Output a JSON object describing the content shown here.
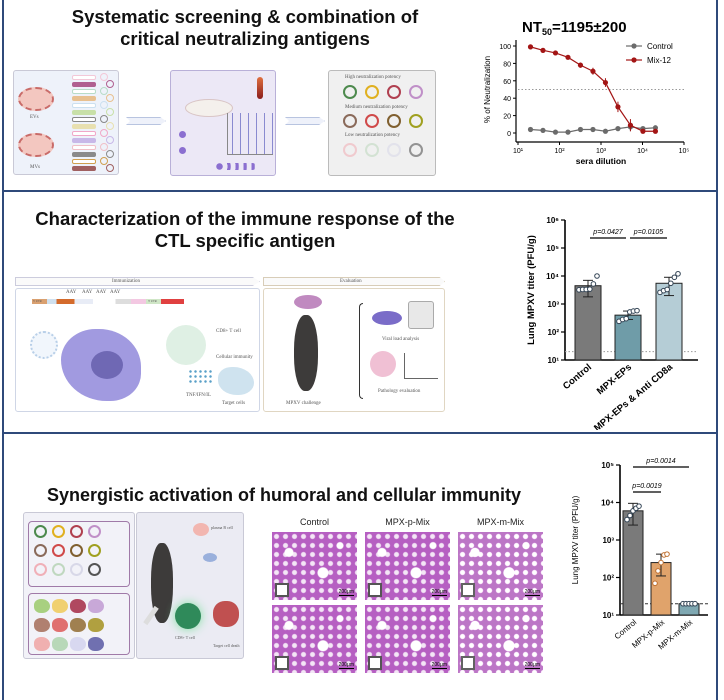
{
  "sections": [
    {
      "title_lines": [
        "Systematic screening & combination of",
        "critical neutralizing antigens"
      ]
    },
    {
      "title_lines": [
        "Characterization of the immune response of the",
        "CTL specific antigen"
      ]
    },
    {
      "title_lines": [
        "Synergistic activation of humoral and cellular immunity"
      ]
    }
  ],
  "diagram1": {
    "evs": "EVs",
    "mvs": "MVs",
    "high": "High neutralization potency",
    "medium": "Medium neutralization potency",
    "low": "Low neutralization potency"
  },
  "diagram2": {
    "immunization": "Immunization",
    "evaluation": "Evaluation",
    "aay": "AAY",
    "utr5": "5' UTR",
    "utr3": "3' UTR",
    "cd8": "CD8+ T cell",
    "cellular": "Cellular immunity",
    "cytokines": "TNF/IFN/IL",
    "target": "Target cells",
    "challenge": "MPXV challenge",
    "viral": "Viral load analysis",
    "pathology": "Pathology evaluation"
  },
  "diagram3": {
    "plasma": "plasma B cell",
    "cd8": "CD8+ T cell",
    "death": "Target cell death"
  },
  "histology": {
    "columns": [
      "Control",
      "MPX-p-Mix",
      "MPX-m-Mix"
    ],
    "scale": "200μm"
  },
  "chart_data": [
    {
      "type": "line",
      "title": "NT50=1195±200",
      "title_main": "NT",
      "title_sub": "50",
      "title_rest": "=1195±200",
      "xlabel": "sera dilution",
      "ylabel": "% of Neutralization",
      "xscale": "log",
      "xlim": [
        10,
        100000
      ],
      "ylim": [
        0,
        100
      ],
      "xticks": [
        "10¹",
        "10²",
        "10³",
        "10⁴",
        "10⁵"
      ],
      "yticks": [
        "0",
        "20",
        "40",
        "60",
        "80",
        "100"
      ],
      "threshold": 50,
      "legend": "top-right",
      "x": [
        20,
        40,
        80,
        160,
        320,
        640,
        1280,
        2560,
        5120,
        10240,
        20480
      ],
      "series": [
        {
          "name": "Control",
          "color": "#6b6b6b",
          "values": [
            4,
            3,
            1,
            1,
            4,
            4,
            2,
            5,
            7,
            5,
            6
          ],
          "err": [
            1,
            1,
            1,
            1,
            1,
            1,
            1,
            1,
            5,
            1,
            1
          ]
        },
        {
          "name": "Mix-12",
          "color": "#a31515",
          "values": [
            99,
            95,
            92,
            87,
            78,
            71,
            58,
            30,
            9,
            2,
            2
          ],
          "err": [
            1,
            1,
            2,
            1,
            3,
            4,
            5,
            6,
            7,
            1,
            1
          ]
        }
      ]
    },
    {
      "type": "bar",
      "ylabel": "Lung MPXV titer (PFU/g)",
      "yscale": "log",
      "ylim": [
        10,
        1000000
      ],
      "yticks": [
        "10¹",
        "10²",
        "10³",
        "10⁴",
        "10⁵",
        "10⁶"
      ],
      "lod": 20,
      "categories": [
        "Control",
        "MPX-EPs",
        "MPX-EPs & Anti CD8a"
      ],
      "values": [
        4500,
        400,
        5500
      ],
      "err_low": [
        1800,
        280,
        2000
      ],
      "err_high": [
        7000,
        560,
        9000
      ],
      "colors": [
        "#7a7a7a",
        "#6f9ca8",
        "#b5cdd6"
      ],
      "points": [
        [
          3200,
          3300,
          3300,
          3400,
          5200,
          10000
        ],
        [
          240,
          280,
          300,
          520,
          560,
          580
        ],
        [
          2600,
          3000,
          3300,
          5500,
          9000,
          12000
        ]
      ],
      "comparisons": [
        {
          "label": "p=0.0427",
          "from": 0,
          "to": 1
        },
        {
          "label": "p=0.0105",
          "from": 1,
          "to": 2
        }
      ]
    },
    {
      "type": "bar",
      "ylabel": "Lung MPXV titer  (PFU/g)",
      "yscale": "log",
      "ylim": [
        10,
        100000
      ],
      "yticks": [
        "10¹",
        "10²",
        "10³",
        "10⁴",
        "10⁵"
      ],
      "lod": 20,
      "categories": [
        "Control",
        "MPX-p-Mix",
        "MPX-m-Mix"
      ],
      "values": [
        6000,
        250,
        20
      ],
      "err_low": [
        2500,
        110,
        20
      ],
      "err_high": [
        9500,
        420,
        20
      ],
      "colors": [
        "#7a7a7a",
        "#e0a36b",
        "#7fa8b2"
      ],
      "points": [
        [
          3500,
          4500,
          6000,
          7000,
          8000
        ],
        [
          70,
          150,
          250,
          400,
          420
        ],
        [
          20,
          20,
          20,
          20,
          20
        ]
      ],
      "comparisons": [
        {
          "label": "p=0.0019",
          "from": 0,
          "to": 1
        },
        {
          "label": "p=0.0014",
          "from": 0,
          "to": 2
        }
      ]
    }
  ]
}
